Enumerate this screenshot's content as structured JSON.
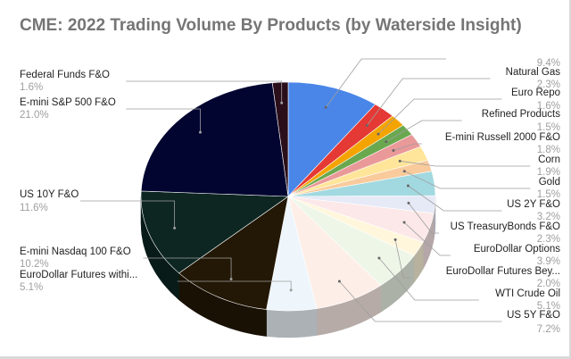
{
  "chart_data": {
    "type": "pie",
    "title": "CME: 2022 Trading Volume By Products (by Waterside Insight)",
    "slices": [
      {
        "label": "",
        "value": 9.4,
        "color": "#4a86e8"
      },
      {
        "label": "Natural Gas",
        "value": 2.3,
        "color": "#e53935"
      },
      {
        "label": "Euro Repo",
        "value": 1.6,
        "color": "#f4a400"
      },
      {
        "label": "Refined Products",
        "value": 1.5,
        "color": "#6aa84f"
      },
      {
        "label": "E-mini Russell 2000 F&O",
        "value": 1.8,
        "color": "#ea9999"
      },
      {
        "label": "Corn",
        "value": 1.9,
        "color": "#ffe599"
      },
      {
        "label": "Gold",
        "value": 1.5,
        "color": "#f9cb9c"
      },
      {
        "label": "US 2Y F&O",
        "value": 3.2,
        "color": "#a2d9e0"
      },
      {
        "label": "US TreasuryBonds F&O",
        "value": 2.3,
        "color": "#e6eaf7"
      },
      {
        "label": "EuroDollar Options",
        "value": 3.9,
        "color": "#fce8e8"
      },
      {
        "label": "EuroDollar Futures Bey...",
        "value": 2.0,
        "color": "#fff6dc"
      },
      {
        "label": "WTI Crude Oil",
        "value": 5.1,
        "color": "#eef6e8"
      },
      {
        "label": "US 5Y F&O",
        "value": 7.2,
        "color": "#fdeee8"
      },
      {
        "label": "EuroDollar Futures withi...",
        "value": 5.1,
        "color": "#eef6fb"
      },
      {
        "label": "E-mini Nasdaq 100 F&O",
        "value": 10.2,
        "color": "#231805"
      },
      {
        "label": "US 10Y F&O",
        "value": 11.6,
        "color": "#0d2622"
      },
      {
        "label": "E-mini S&P 500 F&O",
        "value": 21.0,
        "color": "#010530"
      },
      {
        "label": "Federal Funds  F&O",
        "value": 1.6,
        "color": "#2a0e1a"
      }
    ],
    "value_suffix": "%",
    "legend": "labels-with-leader-lines"
  }
}
